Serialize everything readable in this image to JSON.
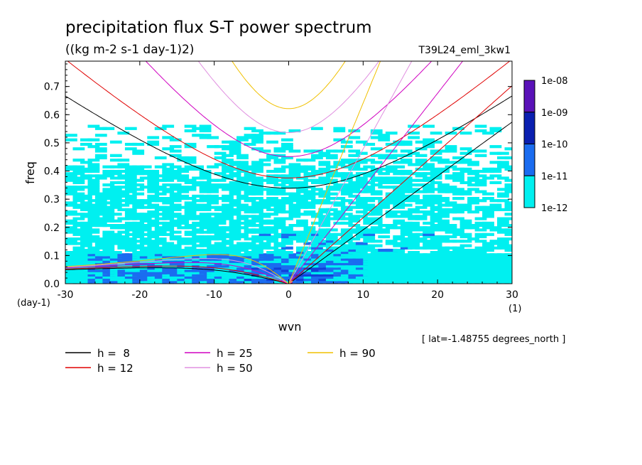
{
  "chart_data": {
    "type": "heatmap",
    "title": "precipitation flux S-T power spectrum",
    "subtitle": "((kg m-2 s-1 day-1)2)",
    "run_label": "T39L24_eml_3kw1",
    "xlabel": "wvn",
    "ylabel": "freq",
    "x_unit": "(1)",
    "y_unit": "(day-1)",
    "xlim": [
      -30,
      30
    ],
    "ylim": [
      0,
      0.79
    ],
    "x_ticks": [
      -30,
      -20,
      -10,
      0,
      10,
      20,
      30
    ],
    "x_tick_labels": [
      "-30",
      "-20",
      "-10",
      "0",
      "10",
      "20",
      "30"
    ],
    "y_ticks": [
      0,
      0.1,
      0.2,
      0.3,
      0.4,
      0.5,
      0.6,
      0.7
    ],
    "y_tick_labels": [
      "0.0",
      "0.1",
      "0.2",
      "0.3",
      "0.4",
      "0.5",
      "0.6",
      "0.7"
    ],
    "annotation": "[ lat=-1.48755 degrees_north ]",
    "colorbar": {
      "labels": [
        "1e-08",
        "1e-09",
        "1e-10",
        "1e-11",
        "1e-12"
      ],
      "colors": [
        "#5a12b8",
        "#0a1fb0",
        "#1a6cf0",
        "#00f0f0"
      ]
    },
    "levels": [
      1e-12,
      1e-11,
      1e-10,
      1e-09,
      1e-08
    ],
    "dispersion_curves": [
      {
        "h": 8,
        "label": "h =  8",
        "color": "#000000"
      },
      {
        "h": 12,
        "label": "h = 12",
        "color": "#e00000"
      },
      {
        "h": 25,
        "label": "h = 25",
        "color": "#d000c0"
      },
      {
        "h": 50,
        "label": "h = 50",
        "color": "#e090e0"
      },
      {
        "h": 90,
        "label": "h = 90",
        "color": "#f0c000"
      }
    ]
  }
}
